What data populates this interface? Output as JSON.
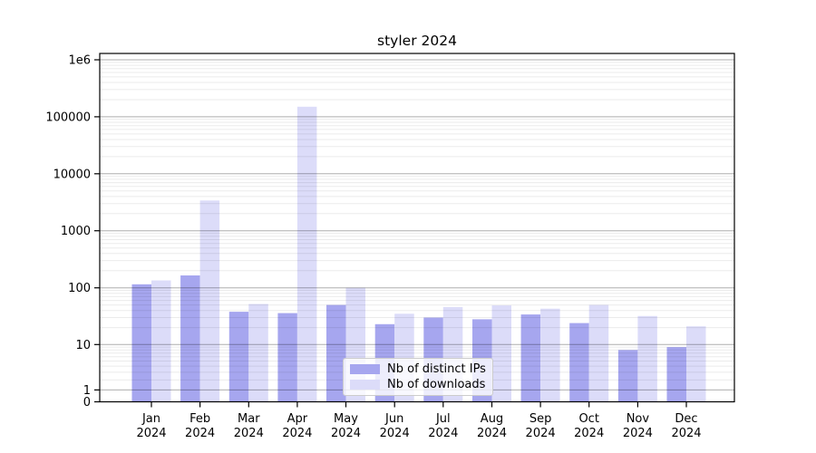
{
  "title": "styler 2024",
  "chart_data": {
    "type": "bar",
    "title": "styler 2024",
    "categories": [
      "Jan",
      "Feb",
      "Mar",
      "Apr",
      "May",
      "Jun",
      "Jul",
      "Aug",
      "Sep",
      "Oct",
      "Nov",
      "Dec"
    ],
    "category_year": "2024",
    "series": [
      {
        "name": "Nb of distinct IPs",
        "color": "#a6a6ef",
        "values": [
          115,
          165,
          38,
          36,
          50,
          23,
          30,
          28,
          34,
          24,
          8,
          9
        ]
      },
      {
        "name": "Nb of downloads",
        "color": "#dcdcf9",
        "values": [
          135,
          3400,
          52,
          150000,
          100,
          35,
          46,
          49,
          43,
          50,
          32,
          21
        ]
      }
    ],
    "yscale": "asinh (log-like above 1, linear to 0)",
    "ylim": [
      0,
      1000000
    ],
    "y_ticks": [
      {
        "value": 1000000,
        "label": "1e6"
      },
      {
        "value": 100000,
        "label": "100000"
      },
      {
        "value": 10000,
        "label": "10000"
      },
      {
        "value": 1000,
        "label": "1000"
      },
      {
        "value": 100,
        "label": "100"
      },
      {
        "value": 10,
        "label": "10"
      },
      {
        "value": 1,
        "label": "1"
      },
      {
        "value": 0,
        "label": "0"
      }
    ],
    "grid": {
      "major": true,
      "minor": true,
      "drawn_over_bars": true
    },
    "legend": {
      "position": "lower center",
      "entries": [
        "Nb of distinct IPs",
        "Nb of downloads"
      ]
    }
  },
  "colors": {
    "bar_distinct_ips": "#a6a6ef",
    "bar_downloads": "#dcdcf9",
    "grid_major": "rgba(0,0,0,0.32)",
    "grid_minor": "rgba(0,0,0,0.08)",
    "axis": "#000000",
    "text": "#000000"
  }
}
